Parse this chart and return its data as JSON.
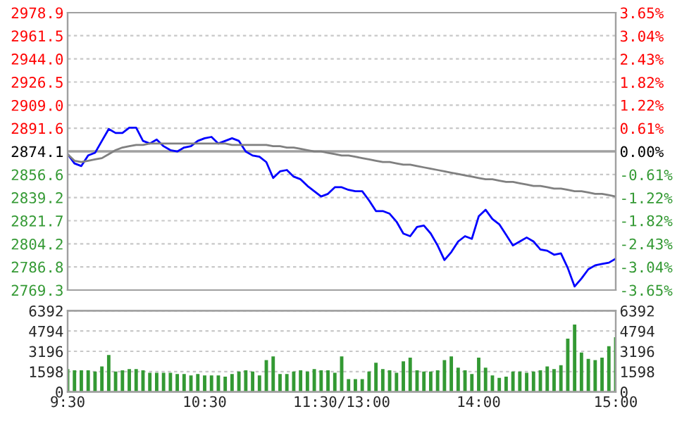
{
  "chart_data": [
    {
      "type": "line",
      "grid": true,
      "categories": [
        null,
        null,
        null,
        null,
        null,
        null,
        null,
        null,
        null,
        null,
        null,
        null,
        null,
        null,
        null,
        null,
        null,
        null,
        null,
        null,
        null,
        null,
        null,
        null,
        null,
        null,
        null,
        null,
        null,
        null,
        null,
        null,
        null,
        null,
        null,
        null,
        null,
        null,
        null,
        null,
        null,
        null,
        null,
        null,
        null,
        null,
        null,
        null,
        null,
        null,
        null,
        null,
        null,
        null,
        null,
        null,
        null,
        null,
        null,
        null,
        null,
        null,
        null,
        null,
        null,
        null,
        null,
        null,
        null,
        null,
        null,
        null,
        null,
        null,
        null,
        null,
        null,
        null,
        null,
        null,
        null
      ],
      "ylim": [
        2769.3,
        2978.9
      ],
      "yticks": [
        {
          "value": 2769.3,
          "label": "2769.3"
        },
        {
          "value": 2786.8,
          "label": "2786.8"
        },
        {
          "value": 2804.2,
          "label": "2804.2"
        },
        {
          "value": 2821.7,
          "label": "2821.7"
        },
        {
          "value": 2839.2,
          "label": "2839.2"
        },
        {
          "value": 2856.6,
          "label": "2856.6"
        },
        {
          "value": 2874.1,
          "label": "2874.1"
        },
        {
          "value": 2891.6,
          "label": "2891.6"
        },
        {
          "value": 2909.0,
          "label": "2909.0"
        },
        {
          "value": 2926.5,
          "label": "2926.5"
        },
        {
          "value": 2944.0,
          "label": "2944.0"
        },
        {
          "value": 2961.5,
          "label": "2961.5"
        },
        {
          "value": 2978.9,
          "label": "2978.9"
        }
      ],
      "y2lim": [
        -3.65,
        3.65
      ],
      "y2ticks": [
        {
          "value": -3.65,
          "label": "-3.65%"
        },
        {
          "value": -3.04,
          "label": "-3.04%"
        },
        {
          "value": -2.43,
          "label": "-2.43%"
        },
        {
          "value": -1.82,
          "label": "-1.82%"
        },
        {
          "value": -1.22,
          "label": "-1.22%"
        },
        {
          "value": -0.61,
          "label": "-0.61%"
        },
        {
          "value": 0,
          "label": "0.00%"
        },
        {
          "value": 0.61,
          "label": "0.61%"
        },
        {
          "value": 1.22,
          "label": "1.22%"
        },
        {
          "value": 1.82,
          "label": "1.82%"
        },
        {
          "value": 2.43,
          "label": "2.43%"
        },
        {
          "value": 3.04,
          "label": "3.04%"
        },
        {
          "value": 3.65,
          "label": "3.65%"
        }
      ],
      "ref_lines": [
        {
          "axis": "y",
          "value": 2874.1,
          "color": "#a0a0a0"
        }
      ],
      "series": [
        {
          "color": "#0000ff",
          "values": [
            2872,
            2865,
            2863,
            2871,
            2873,
            2882,
            2891,
            2888,
            2888,
            2892,
            2892,
            2882,
            2880,
            2883,
            2878,
            2875,
            2874,
            2877,
            2878,
            2882,
            2884,
            2885,
            2880,
            2882,
            2884,
            2882,
            2874,
            2871,
            2870,
            2866,
            2854,
            2859,
            2860,
            2855,
            2853,
            2848,
            2844,
            2840,
            2842,
            2847,
            2847,
            2845,
            2844,
            2844,
            2837,
            2829,
            2829,
            2827,
            2821,
            2812,
            2810,
            2817,
            2818,
            2812,
            2803,
            2792,
            2798,
            2806,
            2810,
            2808,
            2825,
            2830,
            2823,
            2819,
            2811,
            2803,
            2806,
            2809,
            2806,
            2800,
            2799,
            2796,
            2797,
            2786,
            2772,
            2778,
            2785,
            2788,
            2789,
            2790,
            2793
          ]
        },
        {
          "color": "#808080",
          "values": [
            2872,
            2867,
            2866,
            2867,
            2868,
            2869,
            2872,
            2875,
            2877,
            2878,
            2879,
            2879,
            2880,
            2880,
            2880,
            2880,
            2880,
            2880,
            2880,
            2880,
            2880,
            2880,
            2880,
            2880,
            2879,
            2879,
            2879,
            2879,
            2879,
            2879,
            2878,
            2878,
            2877,
            2877,
            2876,
            2875,
            2874,
            2874,
            2873,
            2872,
            2871,
            2871,
            2870,
            2869,
            2868,
            2867,
            2866,
            2866,
            2865,
            2864,
            2864,
            2863,
            2862,
            2861,
            2860,
            2859,
            2858,
            2857,
            2856,
            2855,
            2854,
            2853,
            2853,
            2852,
            2851,
            2851,
            2850,
            2849,
            2848,
            2848,
            2847,
            2846,
            2846,
            2845,
            2844,
            2844,
            2843,
            2842,
            2842,
            2841,
            2840
          ]
        }
      ]
    },
    {
      "type": "bar",
      "grid": true,
      "color": "#339933",
      "categories": [
        "9:30",
        null,
        null,
        null,
        null,
        null,
        null,
        null,
        null,
        null,
        null,
        null,
        null,
        null,
        null,
        null,
        null,
        null,
        null,
        null,
        "10:30",
        null,
        null,
        null,
        null,
        null,
        null,
        null,
        null,
        null,
        null,
        null,
        null,
        null,
        null,
        null,
        null,
        null,
        null,
        null,
        "11:30/13:00",
        null,
        null,
        null,
        null,
        null,
        null,
        null,
        null,
        null,
        null,
        null,
        null,
        null,
        null,
        null,
        null,
        null,
        null,
        null,
        "14:00",
        null,
        null,
        null,
        null,
        null,
        null,
        null,
        null,
        null,
        null,
        null,
        null,
        null,
        null,
        null,
        null,
        null,
        null,
        null,
        "15:00"
      ],
      "ylim": [
        0,
        6392
      ],
      "yticks": [
        0,
        1598,
        3196,
        4794,
        6392
      ],
      "y2lim": [
        0,
        6392
      ],
      "y2ticks": [
        0,
        1598,
        3196,
        4794,
        6392
      ],
      "values": [
        1800,
        1700,
        1700,
        1700,
        1600,
        2000,
        2900,
        1600,
        1700,
        1800,
        1800,
        1700,
        1500,
        1500,
        1500,
        1500,
        1400,
        1400,
        1300,
        1400,
        1300,
        1300,
        1300,
        1200,
        1400,
        1600,
        1700,
        1600,
        1300,
        2500,
        2800,
        1400,
        1400,
        1600,
        1700,
        1600,
        1800,
        1700,
        1700,
        1500,
        2800,
        1000,
        1000,
        1000,
        1600,
        2300,
        1800,
        1700,
        1500,
        2400,
        2700,
        1700,
        1600,
        1600,
        1700,
        2500,
        2800,
        1900,
        1700,
        1400,
        2700,
        1900,
        1300,
        1100,
        1200,
        1600,
        1600,
        1500,
        1600,
        1700,
        2000,
        1800,
        2100,
        4200,
        5300,
        3100,
        2600,
        2500,
        2700,
        3600,
        4300
      ]
    }
  ]
}
